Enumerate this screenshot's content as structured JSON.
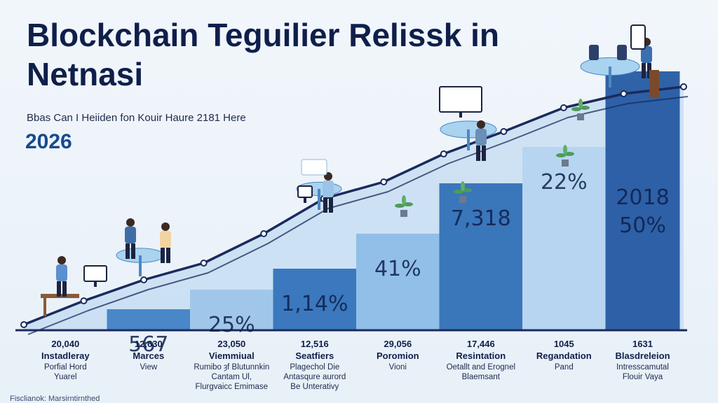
{
  "header": {
    "title_lines": [
      "Blockchain Teguilier Relissk in",
      "Netnasi"
    ],
    "subtitle": "Bbas Can I Heiiden fon Kouir Haure 2181 Here",
    "year": "2026"
  },
  "chart_data": {
    "type": "bar",
    "title": "Blockchain Teguilier Relissk in Netnasi",
    "categories": [
      {
        "value": "20,040",
        "name": "Instadleray",
        "sub": [
          "Porfial Hord",
          "Yuarel"
        ]
      },
      {
        "value": "12,630",
        "name": "Marces",
        "sub": [
          "View"
        ]
      },
      {
        "value": "23,050",
        "name": "Viemmiual",
        "sub": [
          "Rumibo ȝf Blutunnkin",
          "Cantam Ul,",
          "Flurgvaicc Emimase"
        ]
      },
      {
        "value": "12,516",
        "name": "Seatfiers",
        "sub": [
          "Plagechol Die",
          "Antasqure aurord",
          "Be Unterativy"
        ]
      },
      {
        "value": "29,056",
        "name": "Poromion",
        "sub": [
          "Vioni"
        ]
      },
      {
        "value": "17,446",
        "name": "Resintation",
        "sub": [
          "Oetallt and Erognel",
          "Blaemsant"
        ]
      },
      {
        "value": "1045",
        "name": "Regandation",
        "sub": [
          "Pand"
        ]
      },
      {
        "value": "1631",
        "name": "Blasdreleion",
        "sub": [
          "Intresscamutal",
          "Flouir Vaya"
        ]
      }
    ],
    "bar_labels": [
      "",
      "567",
      "25%",
      "1,14%",
      "41%",
      "7,318",
      "22%",
      "2018 50%"
    ],
    "bar_heights": [
      0,
      30,
      58,
      88,
      138,
      210,
      262,
      370
    ],
    "trend_line": [
      8,
      42,
      72,
      96,
      138,
      188,
      212,
      252,
      284,
      318,
      338,
      348
    ],
    "colors": {
      "bars": [
        "#cfe1f3",
        "#3e7fc4",
        "#9cc4e8",
        "#2f6fb8",
        "#8cbce6",
        "#2e6db4",
        "#b5d4ef",
        "#1f559f"
      ],
      "line": "#1a2b5c",
      "area": "#a9cdee"
    }
  },
  "footer": {
    "text": "Fisclianok: Marsirntirnthed"
  }
}
